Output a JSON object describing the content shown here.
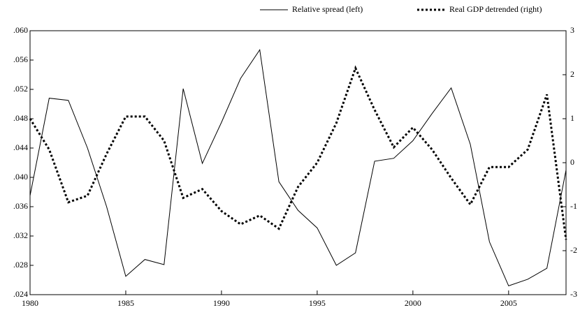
{
  "chart_data": {
    "type": "line",
    "x": [
      1980,
      1981,
      1982,
      1983,
      1984,
      1985,
      1986,
      1987,
      1988,
      1989,
      1990,
      1991,
      1992,
      1993,
      1994,
      1995,
      1996,
      1997,
      1998,
      1999,
      2000,
      2001,
      2002,
      2003,
      2004,
      2005,
      2006,
      2007,
      2008
    ],
    "series": [
      {
        "name": "Relative spread (left)",
        "color": "#000000",
        "dash": "solid",
        "values": [
          0.0375,
          0.0508,
          0.0505,
          0.044,
          0.036,
          0.0265,
          0.0288,
          0.0281,
          0.0521,
          0.0419,
          0.0475,
          0.0535,
          0.0574,
          0.0394,
          0.0355,
          0.0331,
          0.028,
          0.0297,
          0.0422,
          0.0426,
          0.045,
          0.0487,
          0.0522,
          0.0445,
          0.0312,
          0.0252,
          0.0261,
          0.0276,
          0.041
        ]
      },
      {
        "name": "Real GDP detrended (right)",
        "color": "#000000",
        "dash": "dotted",
        "axis": "y2",
        "values": [
          1.0,
          0.3,
          -0.9,
          -0.75,
          0.2,
          1.05,
          1.05,
          0.5,
          -0.8,
          -0.6,
          -1.1,
          -1.4,
          -1.2,
          -1.5,
          -0.55,
          0.0,
          0.9,
          2.15,
          1.2,
          0.35,
          0.8,
          0.3,
          -0.35,
          -0.95,
          -0.1,
          -0.1,
          0.3,
          1.55,
          -1.75
        ]
      }
    ],
    "xlim": [
      1980,
      2008
    ],
    "xticks": [
      1980,
      1985,
      1990,
      1995,
      2000,
      2005
    ],
    "ylim": [
      0.024,
      0.06
    ],
    "yticks": [
      {
        "value": 0.024,
        "label": ".024"
      },
      {
        "value": 0.028,
        "label": ".028"
      },
      {
        "value": 0.032,
        "label": ".032"
      },
      {
        "value": 0.036,
        "label": ".036"
      },
      {
        "value": 0.04,
        "label": ".040"
      },
      {
        "value": 0.044,
        "label": ".044"
      },
      {
        "value": 0.048,
        "label": ".048"
      },
      {
        "value": 0.052,
        "label": ".052"
      },
      {
        "value": 0.056,
        "label": ".056"
      },
      {
        "value": 0.06,
        "label": ".060"
      }
    ],
    "y2lim": [
      -3,
      3
    ],
    "y2ticks": [
      -3,
      -2,
      -1,
      0,
      1,
      2,
      3
    ],
    "grid": false,
    "legend": "top-right"
  }
}
